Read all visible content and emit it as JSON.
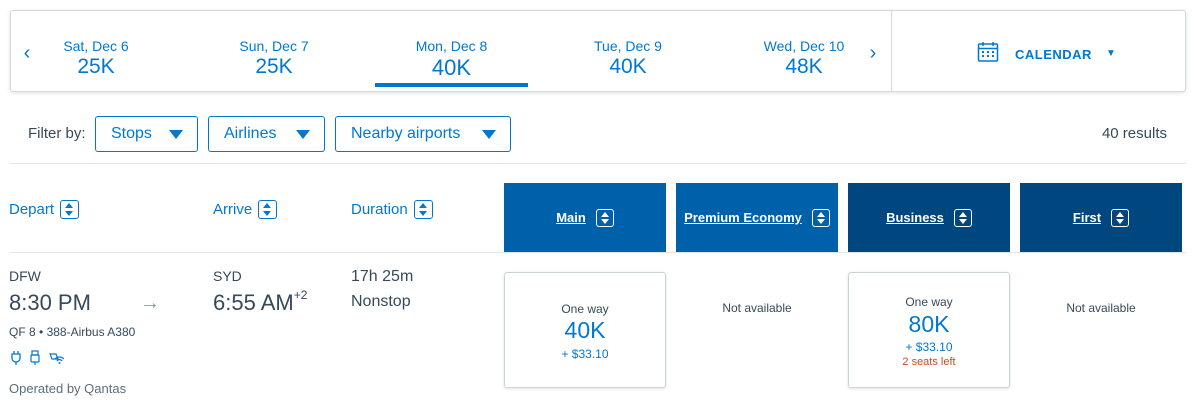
{
  "date_bar": {
    "prev_arrow": "‹",
    "next_arrow": "›",
    "days": [
      {
        "label": "Sat, Dec 6",
        "price": "25K",
        "selected": false
      },
      {
        "label": "Sun, Dec 7",
        "price": "25K",
        "selected": false
      },
      {
        "label": "Mon, Dec 8",
        "price": "40K",
        "selected": true
      },
      {
        "label": "Tue, Dec 9",
        "price": "40K",
        "selected": false
      },
      {
        "label": "Wed, Dec 10",
        "price": "48K",
        "selected": false
      }
    ],
    "calendar_label": "CALENDAR",
    "calendar_icon": "calendar-icon"
  },
  "filters": {
    "label": "Filter by:",
    "buttons": [
      "Stops",
      "Airlines",
      "Nearby airports"
    ],
    "results": "40 results"
  },
  "columns": {
    "depart": "Depart",
    "arrive": "Arrive",
    "duration": "Duration",
    "cabins": [
      "Main",
      "Premium Economy",
      "Business",
      "First"
    ]
  },
  "flight": {
    "origin": "DFW",
    "depart_time": "8:30 PM",
    "destination": "SYD",
    "arrive_time": "6:55 AM",
    "day_offset": "+2",
    "duration": "17h 25m",
    "stops": "Nonstop",
    "flight_number": "QF 8",
    "aircraft": "388-Airbus A380",
    "operated_by": "Operated by Qantas",
    "amenity_icons": [
      "power-outlet-icon",
      "usb-icon",
      "wifi-icon"
    ],
    "fares": {
      "main": {
        "type": "One way",
        "miles": "40K",
        "tax": "+ $33.10"
      },
      "premium_economy": {
        "status": "Not available"
      },
      "business": {
        "type": "One way",
        "miles": "80K",
        "tax": "+ $33.10",
        "seats": "2 seats left"
      },
      "first": {
        "status": "Not available"
      }
    }
  },
  "colors": {
    "accent": "#0078d2",
    "main_header": "#0061ab",
    "business_header": "#00467f",
    "seats_warning": "#c74b1f"
  }
}
